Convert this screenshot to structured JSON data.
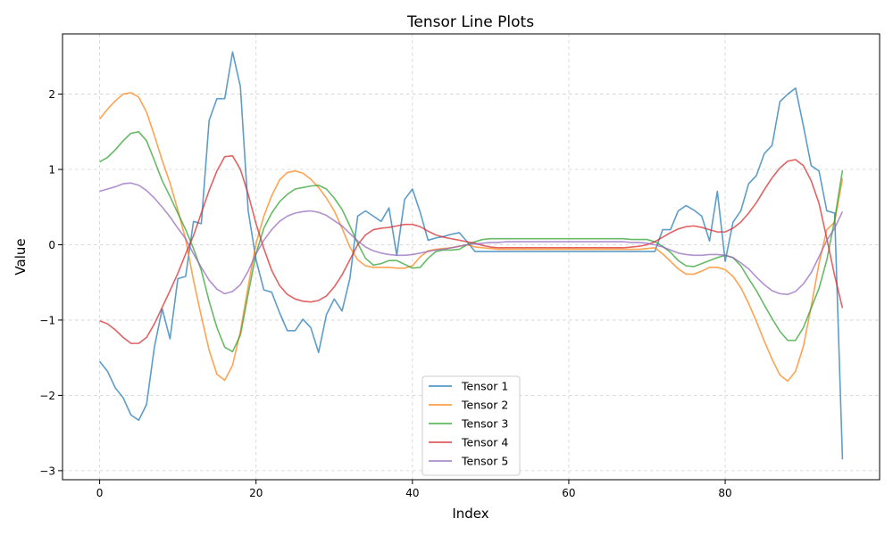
{
  "chart_data": {
    "type": "line",
    "title": "Tensor Line Plots",
    "xlabel": "Index",
    "ylabel": "Value",
    "xlim": [
      -4.75,
      99.75
    ],
    "ylim": [
      -3.12,
      2.8
    ],
    "xticks": [
      0,
      20,
      40,
      60,
      80
    ],
    "yticks": [
      -3,
      -2,
      -1,
      0,
      1,
      2
    ],
    "ytick_labels": [
      "−3",
      "−2",
      "−1",
      "0",
      "1",
      "2"
    ],
    "grid": true,
    "legend_position": "bottom-center",
    "series": [
      {
        "name": "Tensor 1",
        "color": "#1f77b4",
        "values": [
          -1.55,
          -1.68,
          -1.9,
          -2.03,
          -2.26,
          -2.33,
          -2.12,
          -1.36,
          -0.85,
          -1.25,
          -0.45,
          -0.42,
          0.31,
          0.28,
          1.65,
          1.94,
          1.94,
          2.56,
          2.1,
          0.45,
          -0.2,
          -0.6,
          -0.63,
          -0.9,
          -1.14,
          -1.14,
          -0.99,
          -1.1,
          -1.43,
          -0.93,
          -0.72,
          -0.88,
          -0.45,
          0.38,
          0.45,
          0.38,
          0.31,
          0.49,
          -0.14,
          0.6,
          0.74,
          0.43,
          0.06,
          0.09,
          0.11,
          0.14,
          0.16,
          0.04,
          -0.09,
          -0.09,
          -0.09,
          -0.09,
          -0.09,
          -0.09,
          -0.09,
          -0.09,
          -0.09,
          -0.09,
          -0.09,
          -0.09,
          -0.09,
          -0.09,
          -0.09,
          -0.09,
          -0.09,
          -0.09,
          -0.09,
          -0.09,
          -0.09,
          -0.09,
          -0.09,
          -0.09,
          0.2,
          0.2,
          0.45,
          0.52,
          0.46,
          0.38,
          0.05,
          0.71,
          -0.22,
          0.3,
          0.45,
          0.81,
          0.92,
          1.21,
          1.32,
          1.9,
          2.0,
          2.08,
          1.58,
          1.05,
          0.98,
          0.45,
          0.42,
          -2.85
        ]
      },
      {
        "name": "Tensor 2",
        "color": "#ff7f0e",
        "values": [
          1.67,
          1.8,
          1.91,
          2.0,
          2.02,
          1.96,
          1.76,
          1.45,
          1.12,
          0.82,
          0.46,
          0.07,
          -0.47,
          -0.95,
          -1.4,
          -1.72,
          -1.8,
          -1.6,
          -1.15,
          -0.55,
          0.02,
          0.38,
          0.65,
          0.86,
          0.96,
          0.98,
          0.95,
          0.87,
          0.76,
          0.62,
          0.45,
          0.22,
          -0.03,
          -0.2,
          -0.28,
          -0.3,
          -0.3,
          -0.3,
          -0.31,
          -0.31,
          -0.28,
          -0.16,
          -0.08,
          -0.06,
          -0.05,
          -0.04,
          -0.02,
          -0.0,
          -0.03,
          -0.04,
          -0.05,
          -0.06,
          -0.06,
          -0.06,
          -0.06,
          -0.06,
          -0.06,
          -0.06,
          -0.06,
          -0.06,
          -0.06,
          -0.06,
          -0.06,
          -0.06,
          -0.06,
          -0.06,
          -0.06,
          -0.06,
          -0.06,
          -0.06,
          -0.05,
          -0.04,
          -0.12,
          -0.22,
          -0.32,
          -0.39,
          -0.39,
          -0.35,
          -0.3,
          -0.3,
          -0.33,
          -0.42,
          -0.57,
          -0.78,
          -1.02,
          -1.28,
          -1.52,
          -1.73,
          -1.81,
          -1.68,
          -1.35,
          -0.82,
          -0.25,
          0.2,
          0.3,
          0.88
        ]
      },
      {
        "name": "Tensor 3",
        "color": "#2ca02c",
        "values": [
          1.1,
          1.16,
          1.26,
          1.38,
          1.48,
          1.5,
          1.38,
          1.12,
          0.85,
          0.64,
          0.42,
          0.2,
          -0.05,
          -0.34,
          -0.75,
          -1.1,
          -1.36,
          -1.42,
          -1.2,
          -0.65,
          -0.12,
          0.22,
          0.42,
          0.57,
          0.67,
          0.74,
          0.76,
          0.78,
          0.79,
          0.74,
          0.62,
          0.47,
          0.25,
          0.02,
          -0.18,
          -0.27,
          -0.25,
          -0.21,
          -0.21,
          -0.26,
          -0.31,
          -0.3,
          -0.18,
          -0.09,
          -0.07,
          -0.07,
          -0.06,
          0.0,
          0.04,
          0.07,
          0.08,
          0.08,
          0.08,
          0.08,
          0.08,
          0.08,
          0.08,
          0.08,
          0.08,
          0.08,
          0.08,
          0.08,
          0.08,
          0.08,
          0.08,
          0.08,
          0.08,
          0.08,
          0.07,
          0.07,
          0.07,
          0.04,
          -0.02,
          -0.1,
          -0.21,
          -0.28,
          -0.29,
          -0.25,
          -0.21,
          -0.17,
          -0.14,
          -0.17,
          -0.28,
          -0.45,
          -0.61,
          -0.8,
          -0.98,
          -1.15,
          -1.27,
          -1.27,
          -1.1,
          -0.84,
          -0.58,
          -0.2,
          0.33,
          0.99
        ]
      },
      {
        "name": "Tensor 4",
        "color": "#d62728",
        "values": [
          -1.01,
          -1.05,
          -1.13,
          -1.23,
          -1.31,
          -1.31,
          -1.23,
          -1.05,
          -0.83,
          -0.61,
          -0.38,
          -0.12,
          0.12,
          0.42,
          0.72,
          0.98,
          1.17,
          1.18,
          1.0,
          0.67,
          0.28,
          -0.05,
          -0.34,
          -0.54,
          -0.66,
          -0.72,
          -0.75,
          -0.76,
          -0.74,
          -0.68,
          -0.56,
          -0.4,
          -0.2,
          0.0,
          0.13,
          0.2,
          0.22,
          0.23,
          0.25,
          0.27,
          0.27,
          0.24,
          0.18,
          0.13,
          0.1,
          0.08,
          0.06,
          0.04,
          0.02,
          -0.01,
          -0.03,
          -0.04,
          -0.04,
          -0.04,
          -0.04,
          -0.04,
          -0.04,
          -0.04,
          -0.04,
          -0.04,
          -0.04,
          -0.04,
          -0.04,
          -0.04,
          -0.04,
          -0.04,
          -0.04,
          -0.04,
          -0.03,
          -0.02,
          0.0,
          0.04,
          0.1,
          0.16,
          0.21,
          0.24,
          0.25,
          0.23,
          0.2,
          0.17,
          0.17,
          0.22,
          0.3,
          0.42,
          0.56,
          0.73,
          0.89,
          1.02,
          1.11,
          1.13,
          1.05,
          0.85,
          0.55,
          0.08,
          -0.41,
          -0.84
        ]
      },
      {
        "name": "Tensor 5",
        "color": "#9467bd",
        "values": [
          0.71,
          0.74,
          0.77,
          0.81,
          0.82,
          0.79,
          0.72,
          0.62,
          0.5,
          0.37,
          0.22,
          0.08,
          -0.12,
          -0.3,
          -0.47,
          -0.59,
          -0.65,
          -0.62,
          -0.53,
          -0.35,
          -0.12,
          0.06,
          0.2,
          0.31,
          0.38,
          0.42,
          0.44,
          0.45,
          0.43,
          0.39,
          0.32,
          0.25,
          0.15,
          0.05,
          -0.03,
          -0.08,
          -0.11,
          -0.13,
          -0.14,
          -0.14,
          -0.13,
          -0.11,
          -0.09,
          -0.07,
          -0.06,
          -0.04,
          -0.02,
          0.0,
          0.01,
          0.02,
          0.03,
          0.03,
          0.04,
          0.04,
          0.04,
          0.04,
          0.04,
          0.04,
          0.04,
          0.04,
          0.04,
          0.04,
          0.04,
          0.04,
          0.04,
          0.04,
          0.04,
          0.04,
          0.03,
          0.03,
          0.02,
          0.0,
          -0.03,
          -0.07,
          -0.11,
          -0.13,
          -0.14,
          -0.14,
          -0.13,
          -0.13,
          -0.14,
          -0.17,
          -0.24,
          -0.32,
          -0.43,
          -0.53,
          -0.61,
          -0.65,
          -0.66,
          -0.62,
          -0.52,
          -0.37,
          -0.16,
          0.06,
          0.22,
          0.44
        ]
      }
    ]
  }
}
